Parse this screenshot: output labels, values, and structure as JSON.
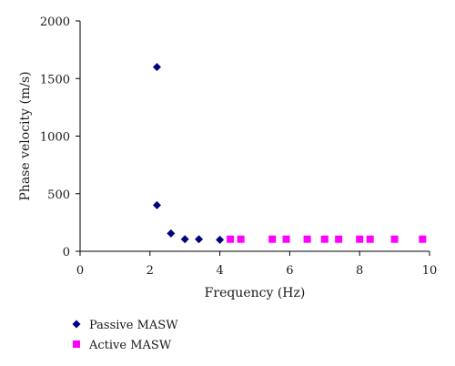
{
  "chart_data": {
    "type": "scatter",
    "xlabel": "Frequency (Hz)",
    "ylabel": "Phase velocity (m/s)",
    "xlim": [
      0,
      10
    ],
    "ylim": [
      0,
      2000
    ],
    "xticks": [
      0,
      2,
      4,
      6,
      8,
      10
    ],
    "yticks": [
      0,
      500,
      1000,
      1500,
      2000
    ],
    "grid": false,
    "legend_position": "bottom-left",
    "series": [
      {
        "name": "Passive MASW",
        "color": "#000080",
        "marker": "diamond",
        "points": [
          [
            2.2,
            1600
          ],
          [
            2.2,
            400
          ],
          [
            2.6,
            155
          ],
          [
            3.0,
            105
          ],
          [
            3.4,
            105
          ],
          [
            4.0,
            100
          ]
        ]
      },
      {
        "name": "Active MASW",
        "color": "#ff00ff",
        "marker": "square",
        "points": [
          [
            4.3,
            105
          ],
          [
            4.6,
            105
          ],
          [
            5.5,
            105
          ],
          [
            5.9,
            105
          ],
          [
            6.5,
            105
          ],
          [
            7.0,
            105
          ],
          [
            7.4,
            105
          ],
          [
            8.0,
            105
          ],
          [
            8.3,
            105
          ],
          [
            9.0,
            105
          ],
          [
            9.8,
            105
          ]
        ]
      }
    ]
  }
}
